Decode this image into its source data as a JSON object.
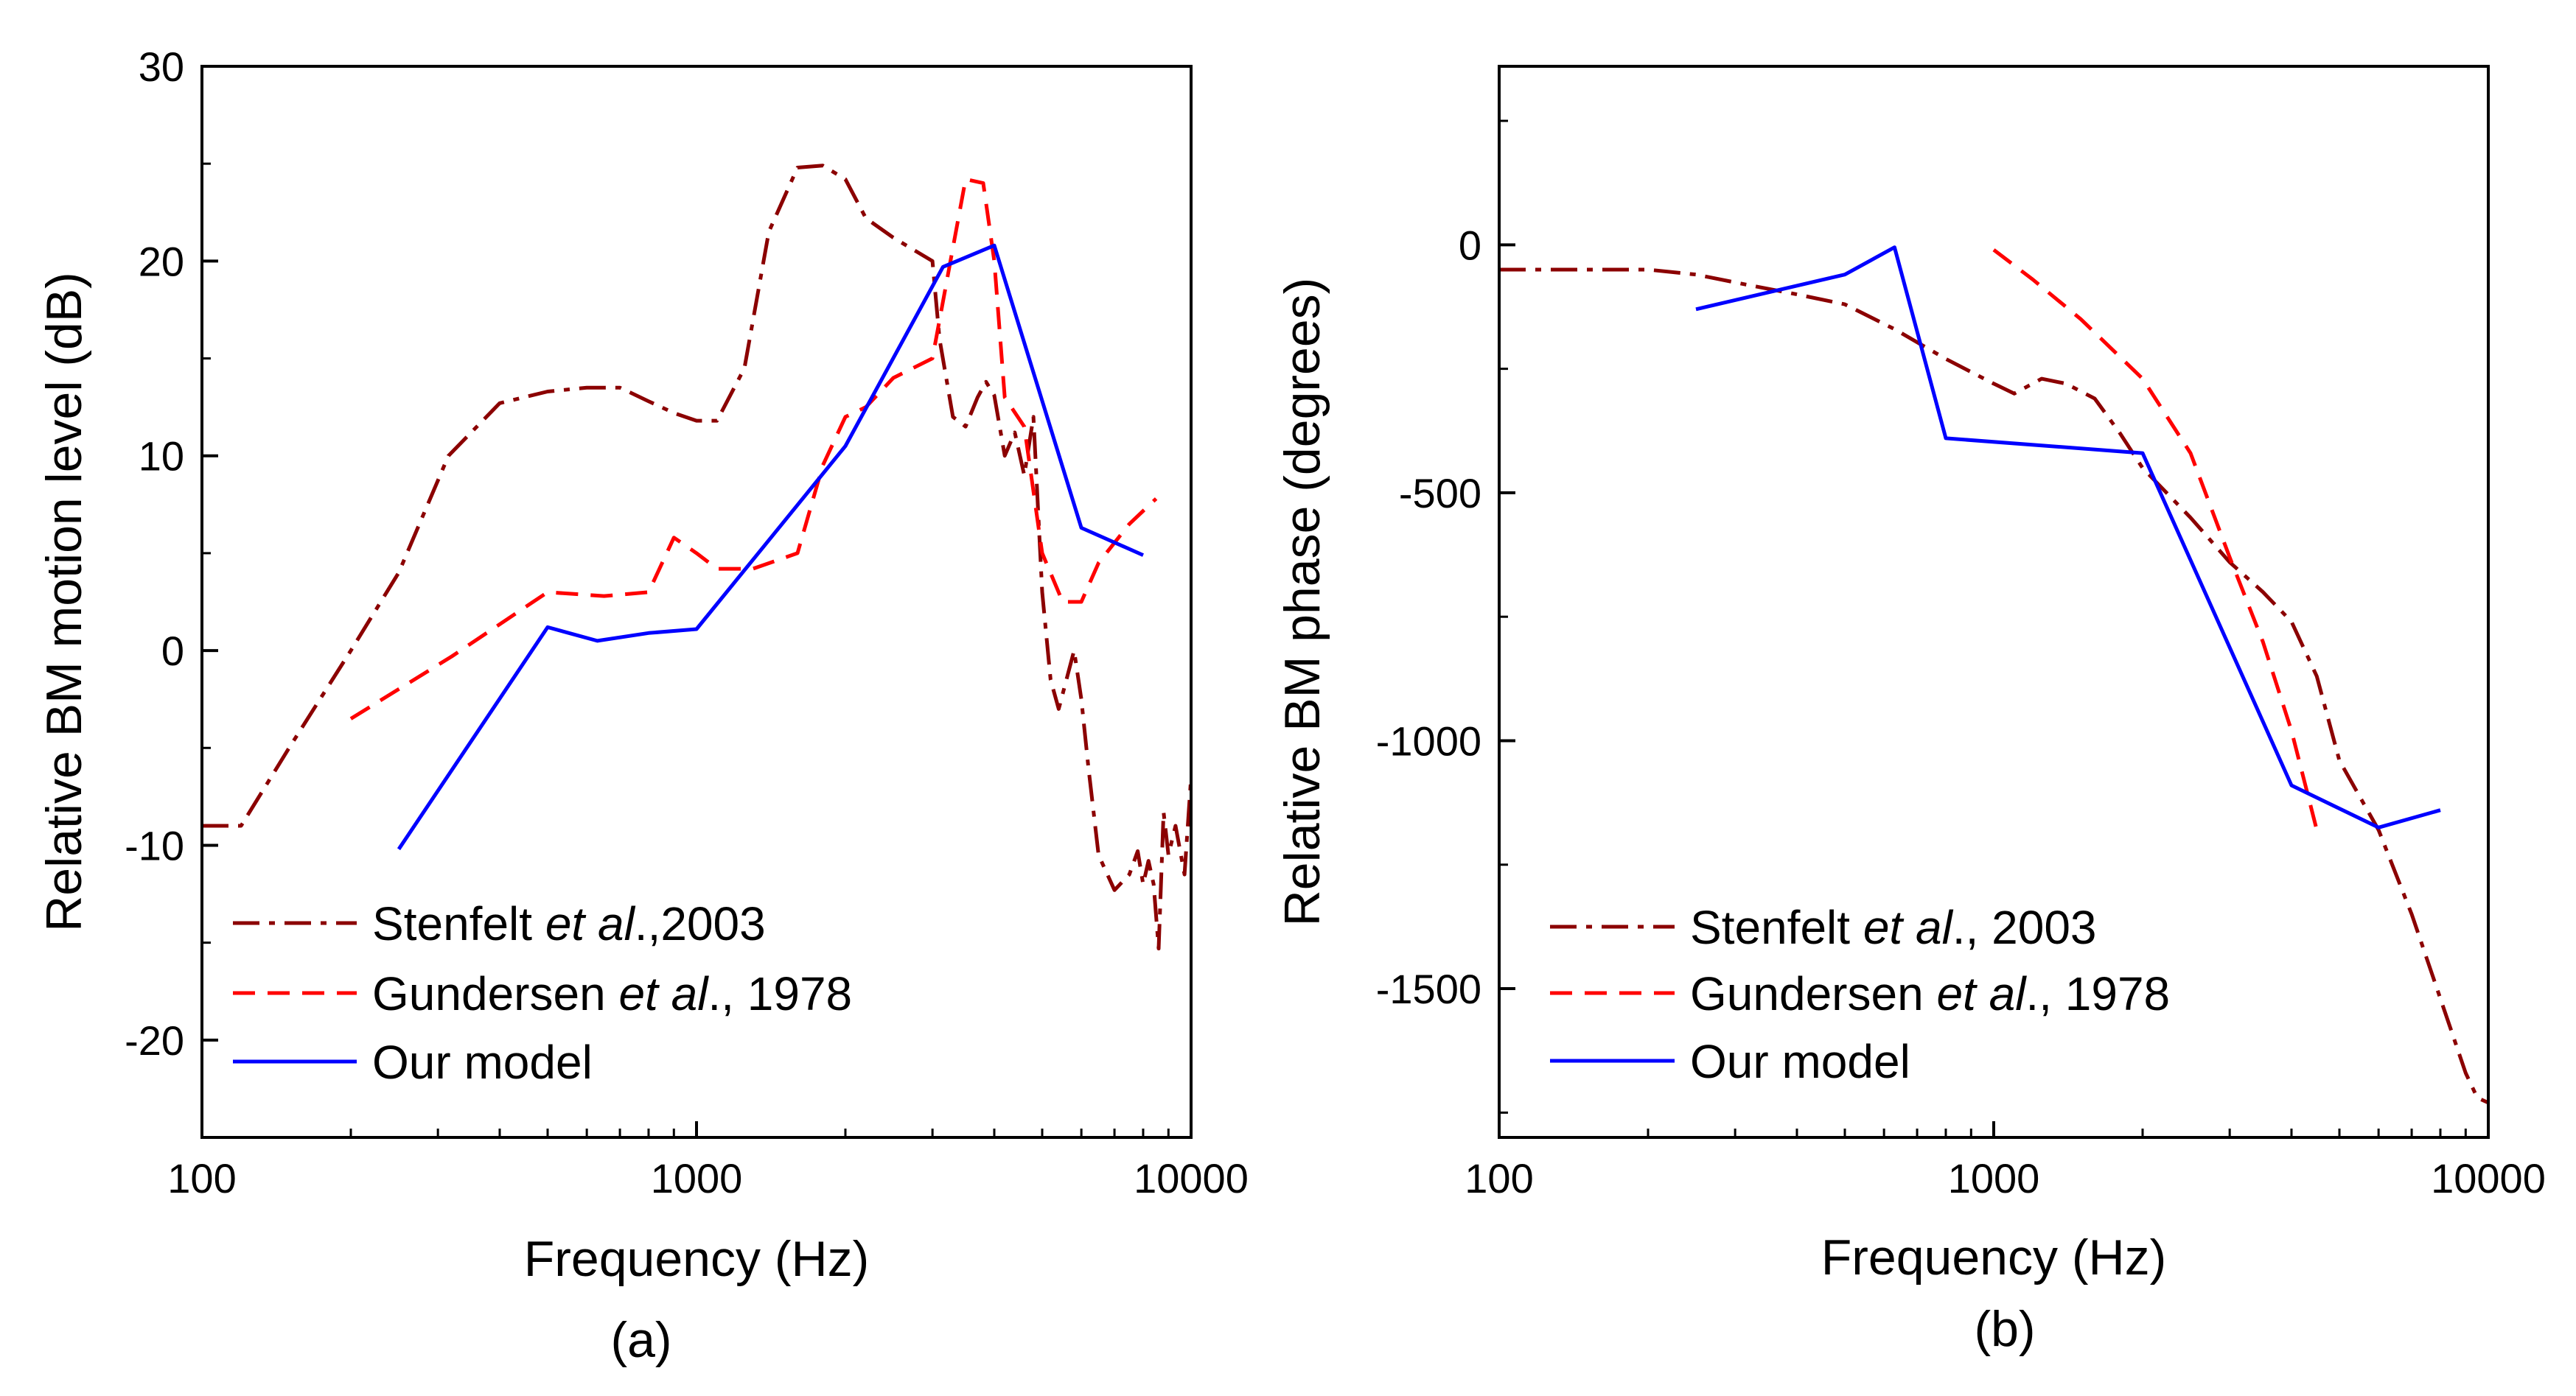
{
  "colors": {
    "stenfelt": "#8b0000",
    "gundersen": "#ff0000",
    "model": "#0000ff",
    "axis": "#000000"
  },
  "legend_text": {
    "stenfelt_a": {
      "pre": "Stenfelt ",
      "ital": "et al",
      "post": ".,2003"
    },
    "stenfelt_b": {
      "pre": "Stenfelt ",
      "ital": "et al",
      "post": "., 2003"
    },
    "gundersen": {
      "pre": "Gundersen ",
      "ital": "et al",
      "post": "., 1978"
    },
    "model": "Our model"
  },
  "chart_data": [
    {
      "type": "line",
      "panel_label": "(a)",
      "title": "",
      "xlabel": "Frequency (Hz)",
      "ylabel": "Relative BM motion level (dB)",
      "xscale": "log",
      "xlim": [
        100,
        10000
      ],
      "ylim": [
        -25,
        30
      ],
      "xticks": [
        100,
        1000,
        10000
      ],
      "xtick_labels": [
        "100",
        "1000",
        "10000"
      ],
      "yticks": [
        -20,
        -10,
        0,
        10,
        20,
        30
      ],
      "ytick_labels": [
        "-20",
        "-10",
        "0",
        "10",
        "20",
        "30"
      ],
      "legend_position": "bottom-left",
      "series": [
        {
          "name": "Stenfelt et al.,2003",
          "style": "dash-dot",
          "x": [
            100,
            120,
            150,
            200,
            250,
            315,
            400,
            500,
            600,
            700,
            800,
            900,
            1000,
            1100,
            1250,
            1400,
            1600,
            1800,
            2000,
            2200,
            2500,
            3000,
            3100,
            3300,
            3500,
            3700,
            3850,
            4000,
            4200,
            4400,
            4600,
            4800,
            5000,
            5200,
            5400,
            5800,
            6000,
            6200,
            6500,
            7000,
            7500,
            7800,
            8000,
            8200,
            8400,
            8600,
            8800,
            9000,
            9300,
            9700,
            10000
          ],
          "y": [
            -9,
            -9,
            -5,
            0,
            4,
            10,
            12.7,
            13.3,
            13.5,
            13.5,
            12.8,
            12.2,
            11.8,
            11.8,
            14.5,
            21.5,
            24.8,
            24.9,
            24.2,
            22.2,
            21.2,
            20,
            16,
            12,
            11.5,
            13,
            13.8,
            13.1,
            10,
            11.2,
            9,
            12,
            3,
            -1.5,
            -3,
            0,
            -2.5,
            -6,
            -10.5,
            -12.3,
            -11.5,
            -10.3,
            -12,
            -10.8,
            -12,
            -15.3,
            -8.3,
            -10.5,
            -9,
            -11.5,
            -6.5
          ]
        },
        {
          "name": "Gundersen et al., 1978",
          "style": "dashed",
          "x": [
            200,
            320,
            500,
            650,
            800,
            900,
            1000,
            1100,
            1300,
            1600,
            1800,
            2000,
            2200,
            2500,
            3000,
            3500,
            3800,
            4000,
            4200,
            4600,
            5000,
            5500,
            6000,
            6500,
            7500,
            8500
          ],
          "y": [
            -3.5,
            -0.3,
            3,
            2.8,
            3,
            5.8,
            5,
            4.2,
            4.2,
            5,
            9.5,
            12,
            12.5,
            14,
            15,
            24.2,
            24,
            20,
            13,
            11.5,
            5,
            2.5,
            2.5,
            4.5,
            6.5,
            7.8
          ]
        },
        {
          "name": "Our model",
          "style": "solid",
          "x": [
            250,
            500,
            630,
            800,
            1000,
            2000,
            3150,
            4000,
            6000,
            8000
          ],
          "y": [
            -10.2,
            1.2,
            0.5,
            0.9,
            1.1,
            10.5,
            19.7,
            20.8,
            6.3,
            4.9
          ]
        }
      ]
    },
    {
      "type": "line",
      "panel_label": "(b)",
      "title": "",
      "xlabel": "Frequency (Hz)",
      "ylabel": "Relative BM phase (degrees)",
      "xscale": "log",
      "xlim": [
        100,
        10000
      ],
      "ylim": [
        -1800,
        360
      ],
      "xticks": [
        100,
        1000,
        10000
      ],
      "xtick_labels": [
        "100",
        "1000",
        "10000"
      ],
      "yticks": [
        -1500,
        -1000,
        -500,
        0
      ],
      "ytick_labels": [
        "-1500",
        "-1000",
        "-500",
        "0"
      ],
      "legend_position": "bottom-left",
      "series": [
        {
          "name": "Stenfelt et al., 2003",
          "style": "dash-dot",
          "x": [
            100,
            150,
            200,
            250,
            315,
            400,
            500,
            630,
            800,
            1000,
            1100,
            1250,
            1400,
            1600,
            1800,
            2000,
            2500,
            3000,
            3500,
            4000,
            4500,
            5000,
            6000,
            7000,
            8000,
            9000,
            9500,
            10000
          ],
          "y": [
            -50,
            -50,
            -50,
            -60,
            -80,
            -100,
            -120,
            -170,
            -230,
            -280,
            -300,
            -270,
            -280,
            -310,
            -380,
            -450,
            -550,
            -640,
            -700,
            -760,
            -870,
            -1040,
            -1180,
            -1350,
            -1520,
            -1670,
            -1720,
            -1730
          ]
        },
        {
          "name": "Gundersen et al., 1978",
          "style": "dashed",
          "x": [
            1000,
            1200,
            1500,
            2000,
            2500,
            3000,
            3500,
            4000,
            4500
          ],
          "y": [
            -10,
            -70,
            -150,
            -270,
            -420,
            -630,
            -800,
            -980,
            -1180
          ]
        },
        {
          "name": "Our model",
          "style": "solid",
          "x": [
            250,
            500,
            630,
            800,
            2000,
            4000,
            6000,
            8000
          ],
          "y": [
            -130,
            -60,
            -5,
            -390,
            -420,
            -1090,
            -1175,
            -1140
          ]
        }
      ]
    }
  ]
}
